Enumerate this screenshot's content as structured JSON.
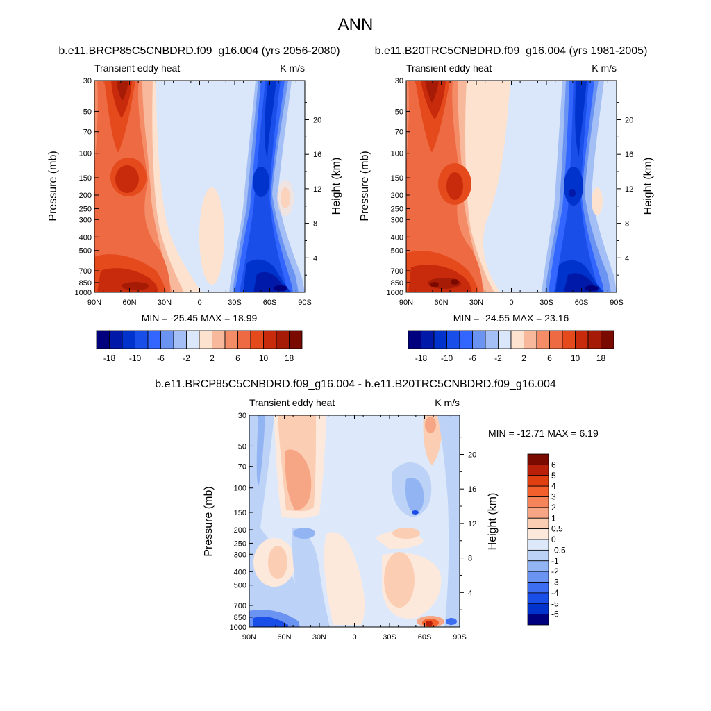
{
  "page_title": "ANN",
  "chart_data": [
    {
      "type": "heatmap",
      "title": "b.e11.BRCP85C5CNBDRD.f09_g16.004 (yrs 2056-2080)",
      "subtitle_left": "Transient eddy heat",
      "subtitle_right": "K m/s",
      "ylabel": "Pressure (mb)",
      "ylabel_right": "Height (km)",
      "x_ticks": [
        "90N",
        "60N",
        "30N",
        "0",
        "30S",
        "60S",
        "90S"
      ],
      "x_range": [
        90,
        -90
      ],
      "y_ticks": [
        "30",
        "50",
        "70",
        "100",
        "150",
        "200",
        "250",
        "300",
        "400",
        "500",
        "700",
        "850",
        "1000"
      ],
      "y_range_mb": [
        30,
        1000
      ],
      "y_log_scale": true,
      "height_ticks": [
        "20",
        "16",
        "12",
        "8",
        "4"
      ],
      "stats_text": "MIN = -25.45  MAX =  18.99",
      "min": -25.45,
      "max": 18.99,
      "colorbar": {
        "orientation": "horizontal",
        "labels": [
          "-18",
          "-10",
          "-6",
          "-2",
          "2",
          "6",
          "10",
          "18"
        ],
        "colors": [
          "#00007f",
          "#0019a8",
          "#0033cc",
          "#1a4ee8",
          "#3366ff",
          "#6b93f2",
          "#a3bff6",
          "#dae6f9",
          "#fde2d0",
          "#f8b89b",
          "#f48c68",
          "#ee6a43",
          "#e44a1c",
          "#c82b0c",
          "#a51b06",
          "#7a0a00"
        ]
      },
      "features": [
        {
          "lat": 65,
          "p": 30,
          "value": 18.99
        },
        {
          "lat": 50,
          "p": 150,
          "value": 14
        },
        {
          "lat": 55,
          "p": 850,
          "value": 16
        },
        {
          "lat": -50,
          "p": 30,
          "value": -14
        },
        {
          "lat": -55,
          "p": 150,
          "value": -16
        },
        {
          "lat": -55,
          "p": 850,
          "value": -25.45
        },
        {
          "lat": -70,
          "p": 200,
          "value": 1
        },
        {
          "lat": 0,
          "p": 400,
          "value": 1
        }
      ]
    },
    {
      "type": "heatmap",
      "title": "b.e11.B20TRC5CNBDRD.f09_g16.004 (yrs 1981-2005)",
      "subtitle_left": "Transient eddy heat",
      "subtitle_right": "K m/s",
      "ylabel": "Pressure (mb)",
      "ylabel_right": "Height (km)",
      "x_ticks": [
        "90N",
        "60N",
        "30N",
        "0",
        "30S",
        "60S",
        "90S"
      ],
      "x_range": [
        90,
        -90
      ],
      "y_ticks": [
        "30",
        "50",
        "70",
        "100",
        "150",
        "200",
        "250",
        "300",
        "400",
        "500",
        "700",
        "850",
        "1000"
      ],
      "y_range_mb": [
        30,
        1000
      ],
      "y_log_scale": true,
      "height_ticks": [
        "20",
        "16",
        "12",
        "8",
        "4"
      ],
      "stats_text": "MIN = -24.55  MAX =  23.16",
      "min": -24.55,
      "max": 23.16,
      "colorbar": {
        "orientation": "horizontal",
        "labels": [
          "-18",
          "-10",
          "-6",
          "-2",
          "2",
          "6",
          "10",
          "18"
        ],
        "colors": [
          "#00007f",
          "#0019a8",
          "#0033cc",
          "#1a4ee8",
          "#3366ff",
          "#6b93f2",
          "#a3bff6",
          "#dae6f9",
          "#fde2d0",
          "#f8b89b",
          "#f48c68",
          "#ee6a43",
          "#e44a1c",
          "#c82b0c",
          "#a51b06",
          "#7a0a00"
        ]
      },
      "features": [
        {
          "lat": 65,
          "p": 30,
          "value": 18
        },
        {
          "lat": 50,
          "p": 150,
          "value": 14
        },
        {
          "lat": 55,
          "p": 850,
          "value": 23.16
        },
        {
          "lat": -50,
          "p": 30,
          "value": -14
        },
        {
          "lat": -55,
          "p": 200,
          "value": -18
        },
        {
          "lat": -55,
          "p": 850,
          "value": -24.55
        },
        {
          "lat": -70,
          "p": 200,
          "value": 1
        }
      ]
    },
    {
      "type": "heatmap",
      "title": "b.e11.BRCP85C5CNBDRD.f09_g16.004 - b.e11.B20TRC5CNBDRD.f09_g16.004",
      "subtitle_left": "Transient eddy heat",
      "subtitle_right": "K m/s",
      "ylabel": "Pressure (mb)",
      "ylabel_right": "Height (km)",
      "x_ticks": [
        "90N",
        "60N",
        "30N",
        "0",
        "30S",
        "60S",
        "90S"
      ],
      "x_range": [
        90,
        -90
      ],
      "y_ticks": [
        "30",
        "50",
        "70",
        "100",
        "150",
        "200",
        "250",
        "300",
        "400",
        "500",
        "700",
        "850",
        "1000"
      ],
      "y_range_mb": [
        30,
        1000
      ],
      "y_log_scale": true,
      "height_ticks": [
        "20",
        "16",
        "12",
        "8",
        "4"
      ],
      "stats_text": "MIN = -12.71  MAX =   6.19",
      "min": -12.71,
      "max": 6.19,
      "colorbar": {
        "orientation": "vertical",
        "labels": [
          "6",
          "5",
          "4",
          "3",
          "2",
          "1",
          "0.5",
          "0",
          "-0.5",
          "-1",
          "-2",
          "-3",
          "-4",
          "-5",
          "-6"
        ],
        "colors": [
          "#7a0a00",
          "#b8200a",
          "#e0400f",
          "#f4602c",
          "#f6845a",
          "#f7a685",
          "#fbcdb3",
          "#fde8dc",
          "#dde9fa",
          "#bcd2f7",
          "#93b4f3",
          "#6b93f2",
          "#3d6ef2",
          "#1a4ee8",
          "#0033cc",
          "#00007f"
        ]
      },
      "features": [
        {
          "lat": 50,
          "p": 80,
          "value": 2
        },
        {
          "lat": 60,
          "p": 400,
          "value": 1
        },
        {
          "lat": -20,
          "p": 500,
          "value": 1
        },
        {
          "lat": -30,
          "p": 200,
          "value": 1
        },
        {
          "lat": -60,
          "p": 40,
          "value": 2
        },
        {
          "lat": -50,
          "p": 130,
          "value": -3
        },
        {
          "lat": 30,
          "p": 200,
          "value": -2
        },
        {
          "lat": 75,
          "p": 950,
          "value": -6
        },
        {
          "lat": -60,
          "p": 960,
          "value": 6.19
        },
        {
          "lat": 80,
          "p": 50,
          "value": -1
        },
        {
          "lat": -85,
          "p": 400,
          "value": -1
        }
      ]
    }
  ]
}
